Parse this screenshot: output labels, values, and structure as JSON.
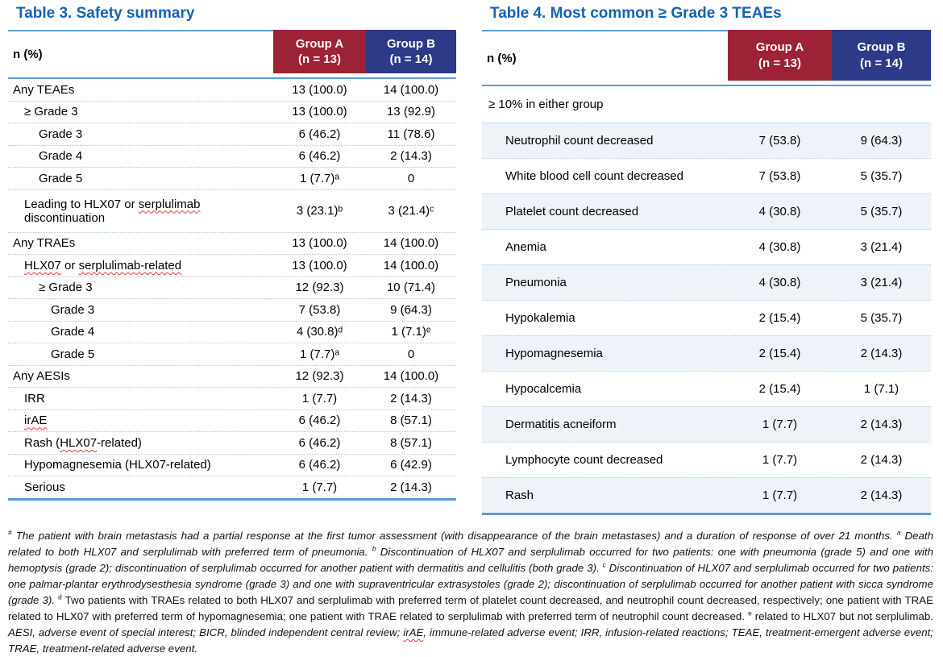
{
  "colors": {
    "title_blue": "#1561B5",
    "border_blue": "#5B9BD5",
    "dotted_separator_blue": "#A6C9E8",
    "band_light_blue": "#EEF3F9",
    "group_a_red": "#9D2235",
    "group_b_navy": "#2D3A87",
    "spellcheck_squiggle_red": "#E53935"
  },
  "table3": {
    "title": "Table 3. Safety summary",
    "header": {
      "label": "n (%)",
      "group_a": "Group A\n(n = 13)",
      "group_b": "Group B\n(n = 14)"
    },
    "rows": [
      {
        "label": "Any TEAEs",
        "indent": 0,
        "a": "13 (100.0)",
        "b": "14 (100.0)"
      },
      {
        "label": "≥ Grade 3",
        "indent": 1,
        "a": "13 (100.0)",
        "b": "13 (92.9)"
      },
      {
        "label": "Grade 3",
        "indent": 2,
        "a": "6 (46.2)",
        "b": "11 (78.6)"
      },
      {
        "label": "Grade 4",
        "indent": 2,
        "a": "6 (46.2)",
        "b": "2 (14.3)"
      },
      {
        "label": "Grade 5",
        "indent": 2,
        "a": "1 (7.7)ᵃ",
        "b": "0"
      },
      {
        "label": "Leading to HLX07 or serplulimab discontinuation",
        "indent": 1,
        "a": "3 (23.1)ᵇ",
        "b": "3 (21.4)ᶜ",
        "two_line": true,
        "misspelled": [
          "serplulimab"
        ]
      },
      {
        "label": "Any TRAEs",
        "indent": 0,
        "a": "13 (100.0)",
        "b": "14 (100.0)"
      },
      {
        "label": "HLX07 or serplulimab-related",
        "indent": 1,
        "a": "13 (100.0)",
        "b": "14 (100.0)",
        "misspelled": [
          "HLX07",
          "serplulimab-related"
        ]
      },
      {
        "label": "≥ Grade 3",
        "indent": 2,
        "a": "12 (92.3)",
        "b": "10 (71.4)"
      },
      {
        "label": "Grade 3",
        "indent": 3,
        "a": "7 (53.8)",
        "b": "9 (64.3)"
      },
      {
        "label": "Grade 4",
        "indent": 3,
        "a": "4 (30.8)ᵈ",
        "b": "1 (7.1)ᵉ"
      },
      {
        "label": "Grade 5",
        "indent": 3,
        "a": "1 (7.7)ᵃ",
        "b": "0"
      },
      {
        "label": "Any AESIs",
        "indent": 0,
        "a": "12 (92.3)",
        "b": "14 (100.0)"
      },
      {
        "label": "IRR",
        "indent": 1,
        "a": "1 (7.7)",
        "b": "2 (14.3)"
      },
      {
        "label": "irAE",
        "indent": 1,
        "a": "6 (46.2)",
        "b": "8 (57.1)",
        "misspelled": [
          "irAE"
        ]
      },
      {
        "label": "Rash (HLX07-related)",
        "indent": 1,
        "a": "6 (46.2)",
        "b": "8 (57.1)",
        "misspelled": [
          "HLX07"
        ]
      },
      {
        "label": "Hypomagnesemia (HLX07-related)",
        "indent": 1,
        "a": "6 (46.2)",
        "b": "6 (42.9)"
      },
      {
        "label": "Serious",
        "indent": 1,
        "a": "1 (7.7)",
        "b": "2 (14.3)"
      }
    ]
  },
  "table4": {
    "title": "Table 4. Most common ≥ Grade 3 TEAEs",
    "header": {
      "label": "n (%)",
      "group_a": "Group A\n(n = 13)",
      "group_b": "Group B\n(n = 14)"
    },
    "rows": [
      {
        "label": "≥ 10% in either group",
        "span": true
      },
      {
        "label": "Neutrophil count decreased",
        "a": "7 (53.8)",
        "b": "9 (64.3)",
        "band": true
      },
      {
        "label": "White blood cell count decreased",
        "a": "7 (53.8)",
        "b": "5 (35.7)"
      },
      {
        "label": "Platelet count decreased",
        "a": "4 (30.8)",
        "b": "5 (35.7)",
        "band": true
      },
      {
        "label": "Anemia",
        "a": "4 (30.8)",
        "b": "3 (21.4)"
      },
      {
        "label": "Pneumonia",
        "a": "4 (30.8)",
        "b": "3 (21.4)",
        "band": true
      },
      {
        "label": "Hypokalemia",
        "a": "2 (15.4)",
        "b": "5 (35.7)"
      },
      {
        "label": "Hypomagnesemia",
        "a": "2 (15.4)",
        "b": "2 (14.3)",
        "band": true
      },
      {
        "label": "Hypocalcemia",
        "a": "2 (15.4)",
        "b": "1 (7.1)"
      },
      {
        "label": "Dermatitis acneiform",
        "a": "1 (7.7)",
        "b": "2 (14.3)",
        "band": true
      },
      {
        "label": "Lymphocyte count decreased",
        "a": "1 (7.7)",
        "b": "2 (14.3)"
      },
      {
        "label": "Rash",
        "a": "1 (7.7)",
        "b": "2 (14.3)",
        "band": true
      }
    ]
  },
  "footnote": {
    "segments": [
      {
        "t": "#",
        "i": true,
        "s": true
      },
      {
        "t": " The patient with brain metastasis had a partial response at the first tumor assessment (with disappearance of the brain metastases) and a duration of response of over 21 months. ",
        "i": true
      },
      {
        "t": "a",
        "i": true,
        "s": true
      },
      {
        "t": " Death related to both HLX07 and serplulimab with preferred term of pneumonia. ",
        "i": true
      },
      {
        "t": "b",
        "i": true,
        "s": true
      },
      {
        "t": " Discontinuation of HLX07 and serplulimab occurred for two patients: one with pneumonia (grade 5) and one with hemoptysis (grade 2); discontinuation of serplulimab occurred for another patient with dermatitis and cellulitis (both grade 3). ",
        "i": true
      },
      {
        "t": "c",
        "i": true,
        "s": true
      },
      {
        "t": " Discontinuation of HLX07 and serplulimab occurred for two patients: one palmar-plantar erythrodysesthesia syndrome (grade 3) and one with supraventricular extrasystoles (grade 2); discontinuation of serplulimab occurred for another patient with sicca syndrome (grade 3). ",
        "i": true
      },
      {
        "t": "d",
        "i": false,
        "s": true
      },
      {
        "t": " Two patients with TRAEs related to both HLX07 and serplulimab with preferred term of platelet count decreased, and neutrophil count decreased, respectively; one patient with TRAE related to HLX07 with preferred term of hypomagnesemia; one patient with TRAE related to serplulimab with preferred term of neutrophil count decreased. ",
        "i": false
      },
      {
        "t": "e",
        "i": false,
        "s": true
      },
      {
        "t": " related to HLX07 but not serplulimab. ",
        "i": false
      },
      {
        "t": "AESI, adverse event of special interest; BICR, blinded independent central review; ",
        "i": true
      },
      {
        "t": "irAE",
        "i": true,
        "q": true
      },
      {
        "t": ", immune-related adverse event; IRR, infusion-related reactions; TEAE, treatment-emergent adverse event; TRAE, treatment-related adverse event.",
        "i": true
      }
    ]
  }
}
